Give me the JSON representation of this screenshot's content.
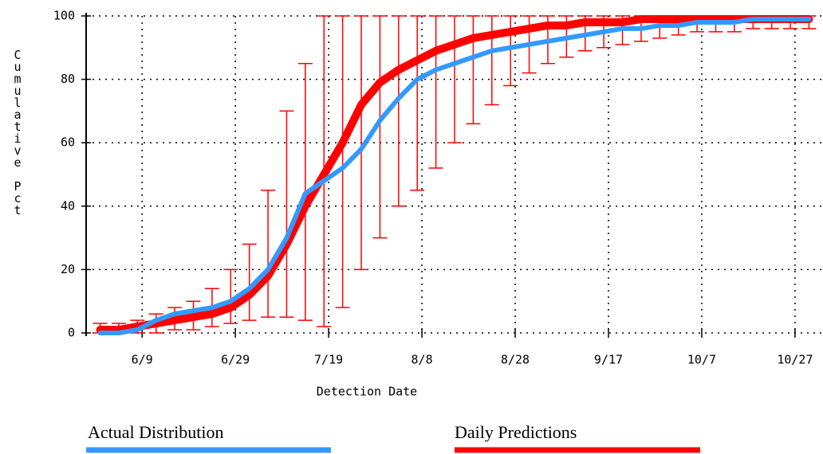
{
  "chart_data": {
    "type": "line",
    "x_label": "Detection Date",
    "y_label": "Cumulative Pct",
    "x": [
      "5/31",
      "6/4",
      "6/8",
      "6/12",
      "6/16",
      "6/20",
      "6/24",
      "6/28",
      "7/2",
      "7/6",
      "7/10",
      "7/14",
      "7/18",
      "7/22",
      "7/26",
      "7/30",
      "8/3",
      "8/7",
      "8/11",
      "8/15",
      "8/19",
      "8/23",
      "8/27",
      "8/31",
      "9/4",
      "9/8",
      "9/12",
      "9/16",
      "9/20",
      "9/24",
      "9/28",
      "10/2",
      "10/6",
      "10/10",
      "10/14",
      "10/18",
      "10/22",
      "10/26",
      "10/30"
    ],
    "series": [
      {
        "name": "Daily Predictions",
        "color": "#ff0000",
        "values": [
          1,
          1,
          2,
          3,
          4,
          5,
          6,
          8,
          12,
          18,
          28,
          40,
          50,
          60,
          72,
          79,
          83,
          86,
          89,
          91,
          93,
          94,
          95,
          96,
          97,
          97,
          98,
          98,
          98,
          99,
          99,
          99,
          99,
          99,
          99,
          99,
          99,
          99,
          99
        ],
        "lower": [
          0,
          0,
          0,
          0,
          1,
          1,
          2,
          3,
          4,
          5,
          5,
          4,
          2,
          8,
          20,
          30,
          40,
          45,
          52,
          60,
          66,
          72,
          78,
          82,
          85,
          87,
          89,
          90,
          91,
          92,
          93,
          94,
          95,
          95,
          95,
          96,
          96,
          96,
          96
        ],
        "upper": [
          3,
          3,
          4,
          6,
          8,
          10,
          14,
          20,
          28,
          45,
          70,
          85,
          100,
          100,
          100,
          100,
          100,
          100,
          100,
          100,
          100,
          100,
          100,
          100,
          100,
          100,
          100,
          100,
          100,
          100,
          100,
          100,
          100,
          100,
          100,
          100,
          100,
          100,
          100
        ]
      },
      {
        "name": "Actual Distribution",
        "color": "#3399ff",
        "values": [
          0,
          0,
          1,
          4,
          6,
          7,
          8,
          10,
          14,
          20,
          30,
          44,
          48,
          52,
          58,
          67,
          74,
          80,
          83,
          85,
          87,
          89,
          90,
          91,
          92,
          93,
          94,
          95,
          96,
          96,
          97,
          97,
          98,
          98,
          98,
          99,
          99,
          99,
          99
        ]
      }
    ],
    "xlim": [
      "5/28",
      "11/2"
    ],
    "xticks": [
      "6/9",
      "6/29",
      "7/19",
      "8/8",
      "8/28",
      "9/17",
      "10/7",
      "10/27"
    ],
    "ylim": [
      0,
      100
    ],
    "yticks": [
      0,
      20,
      40,
      60,
      80,
      100
    ],
    "grid": true
  }
}
